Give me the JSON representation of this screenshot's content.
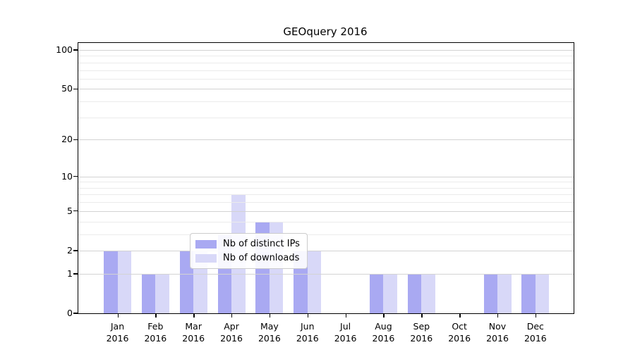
{
  "title": "GEOquery 2016",
  "colors": {
    "ips": "#a9a9f2",
    "downloads": "#d8d8f8",
    "grid_major": "#d3d3d3",
    "grid_minor": "#ebebeb",
    "spine": "#000000",
    "legend_border": "#cccccc"
  },
  "chart_data": {
    "type": "bar",
    "title": "GEOquery 2016",
    "scale": "log1p",
    "months": [
      "Jan",
      "Feb",
      "Mar",
      "Apr",
      "May",
      "Jun",
      "Jul",
      "Aug",
      "Sep",
      "Oct",
      "Nov",
      "Dec"
    ],
    "year": "2016",
    "series": [
      {
        "name": "Nb of distinct IPs",
        "color_key": "ips",
        "values": [
          2,
          1,
          2,
          3,
          4,
          2,
          0,
          1,
          1,
          0,
          1,
          1
        ]
      },
      {
        "name": "Nb of downloads",
        "color_key": "downloads",
        "values": [
          2,
          1,
          2,
          7,
          4,
          2,
          0,
          1,
          1,
          0,
          1,
          1
        ]
      }
    ],
    "y_ticks": [
      0,
      1,
      2,
      5,
      10,
      20,
      50,
      100
    ],
    "y_minor_gridlines": [
      3,
      4,
      6,
      7,
      8,
      9,
      30,
      40,
      60,
      70,
      80,
      90
    ],
    "ylim": [
      0,
      100
    ],
    "xlabel": "",
    "ylabel": "",
    "grid": "on",
    "legend_position": "bottom-center-inside"
  }
}
